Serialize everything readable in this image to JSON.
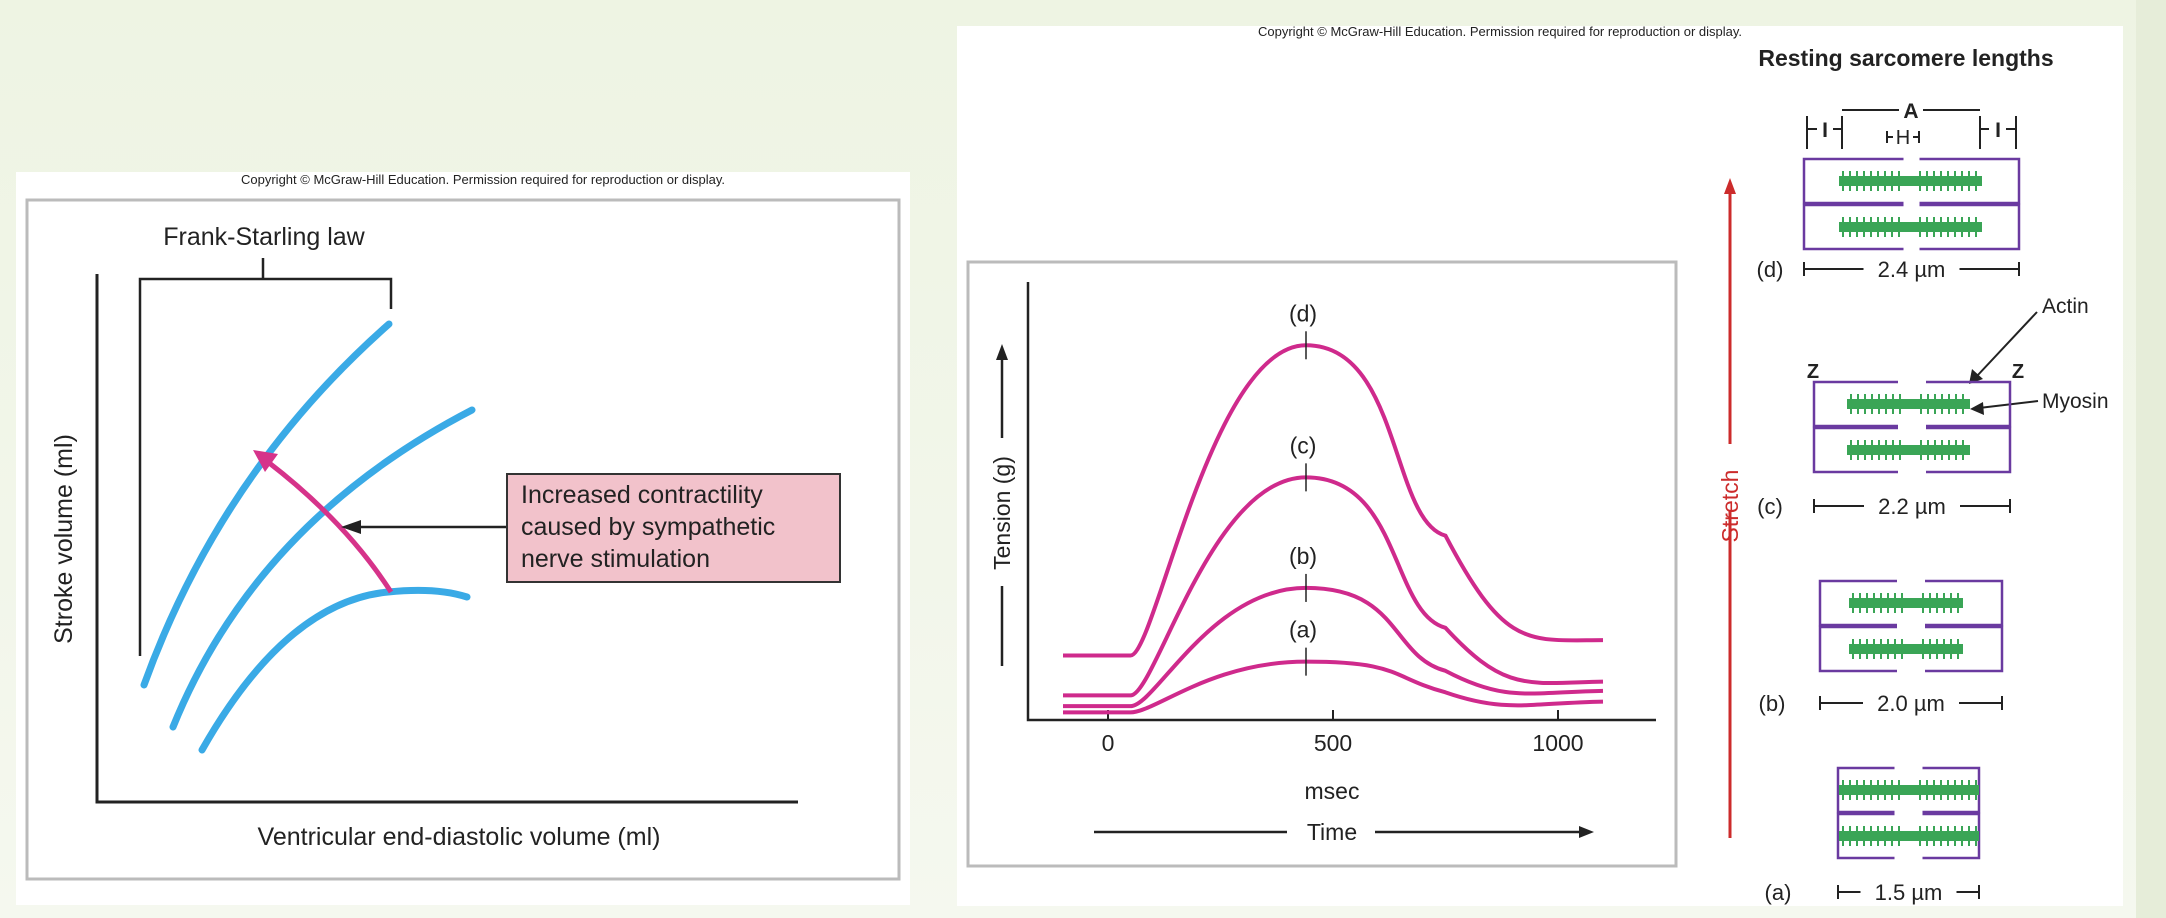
{
  "left_figure": {
    "copyright": "Copyright © McGraw-Hill Education. Permission required for reproduction or display.",
    "title": "Frank-Starling law",
    "y_axis_label": "Stroke volume (ml)",
    "x_axis_label": "Ventricular end-diastolic volume (ml)",
    "callout_lines": [
      "Increased contractility",
      "caused by sympathetic",
      "nerve stimulation"
    ],
    "colors": {
      "curve": "#3aaae6",
      "arrow": "#d6338a",
      "callout_fill": "#f2c2cb"
    }
  },
  "right_figure": {
    "copyright": "Copyright © McGraw-Hill Education. Permission required for reproduction or display.",
    "graph": {
      "y_axis_label": "Tension (g)",
      "x_axis_label": "msec",
      "x_caption": "Time",
      "x_ticks": [
        "0",
        "500",
        "1000"
      ],
      "curve_labels": [
        "(a)",
        "(b)",
        "(c)",
        "(d)"
      ]
    },
    "sarcomere": {
      "title": "Resting sarcomere lengths",
      "stretch_label": "Stretch",
      "band_labels": {
        "a_band": "A",
        "h_zone": "H",
        "i_band": "I"
      },
      "z_label": "Z",
      "actin_label": "Actin",
      "myosin_label": "Myosin",
      "rows": [
        {
          "label": "(d)",
          "length": "2.4 µm"
        },
        {
          "label": "(c)",
          "length": "2.2 µm"
        },
        {
          "label": "(b)",
          "length": "2.0 µm"
        },
        {
          "label": "(a)",
          "length": "1.5 µm"
        }
      ]
    },
    "colors": {
      "curve": "#cf2a8c",
      "stretch": "#cc2b2b",
      "sarcomere_outline": "#6a3aa0",
      "myosin": "#3aa556"
    }
  },
  "chart_data": {
    "type": "line",
    "xlabel": "msec",
    "ylabel": "Tension (g)",
    "x_ticks": [
      0,
      500,
      1000
    ],
    "xlim": [
      -100,
      1100
    ],
    "series": [
      {
        "name": "(a)",
        "x": [
          -100,
          50,
          440,
          750,
          1000,
          1100
        ],
        "y": [
          0.25,
          0.25,
          1.9,
          0.9,
          0.55,
          0.6
        ]
      },
      {
        "name": "(b)",
        "x": [
          -100,
          50,
          440,
          750,
          1000,
          1100
        ],
        "y": [
          0.45,
          0.45,
          4.3,
          1.6,
          0.9,
          0.95
        ]
      },
      {
        "name": "(c)",
        "x": [
          -100,
          50,
          440,
          750,
          1000,
          1100
        ],
        "y": [
          0.8,
          0.8,
          7.9,
          3.0,
          1.2,
          1.25
        ]
      },
      {
        "name": "(d)",
        "x": [
          -100,
          50,
          440,
          750,
          1000,
          1100
        ],
        "y": [
          2.1,
          2.1,
          12.2,
          6.0,
          2.6,
          2.6
        ]
      }
    ]
  }
}
